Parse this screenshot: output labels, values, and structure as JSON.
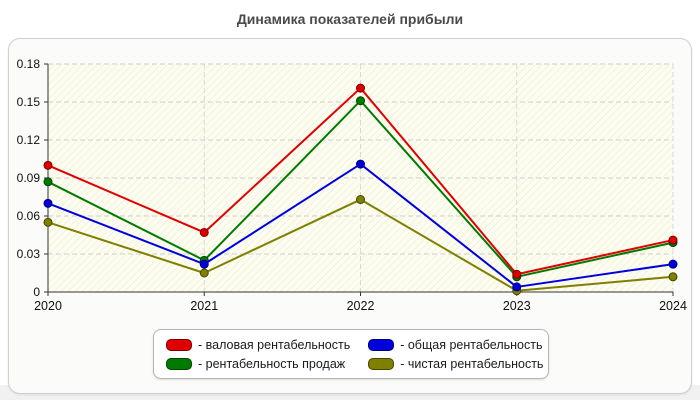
{
  "chart_data": {
    "type": "line",
    "title": "Динамика показателей прибыли",
    "categories": [
      "2020",
      "2021",
      "2022",
      "2023",
      "2024"
    ],
    "series": [
      {
        "name": "валовая рентабельность",
        "color": "#e00000",
        "values": [
          0.1,
          0.047,
          0.161,
          0.014,
          0.041
        ]
      },
      {
        "name": "рентабельность продаж",
        "color": "#007b00",
        "values": [
          0.087,
          0.025,
          0.151,
          0.012,
          0.039
        ]
      },
      {
        "name": "общая рентабельность",
        "color": "#0000dd",
        "values": [
          0.07,
          0.022,
          0.101,
          0.004,
          0.022
        ]
      },
      {
        "name": "чистая рентабельность",
        "color": "#7f7f00",
        "values": [
          0.055,
          0.015,
          0.073,
          0.001,
          0.012
        ]
      }
    ],
    "xlabel": "",
    "ylabel": "",
    "ylim": [
      0,
      0.18
    ],
    "yticks": [
      "0",
      "0.03",
      "0.06",
      "0.09",
      "0.12",
      "0.15",
      "0.18"
    ],
    "grid": true,
    "grid_style": "dashed",
    "legend_position": "bottom",
    "plot_background": "#fcfcef",
    "hatch_color": "#e9e9d9"
  },
  "legend": {
    "items": [
      {
        "label": "- валовая рентабельность",
        "color": "#e00000"
      },
      {
        "label": "- рентабельность продаж",
        "color": "#007b00"
      },
      {
        "label": "- общая рентабельность",
        "color": "#0000dd"
      },
      {
        "label": "- чистая рентабельность",
        "color": "#7f7f00"
      }
    ]
  }
}
